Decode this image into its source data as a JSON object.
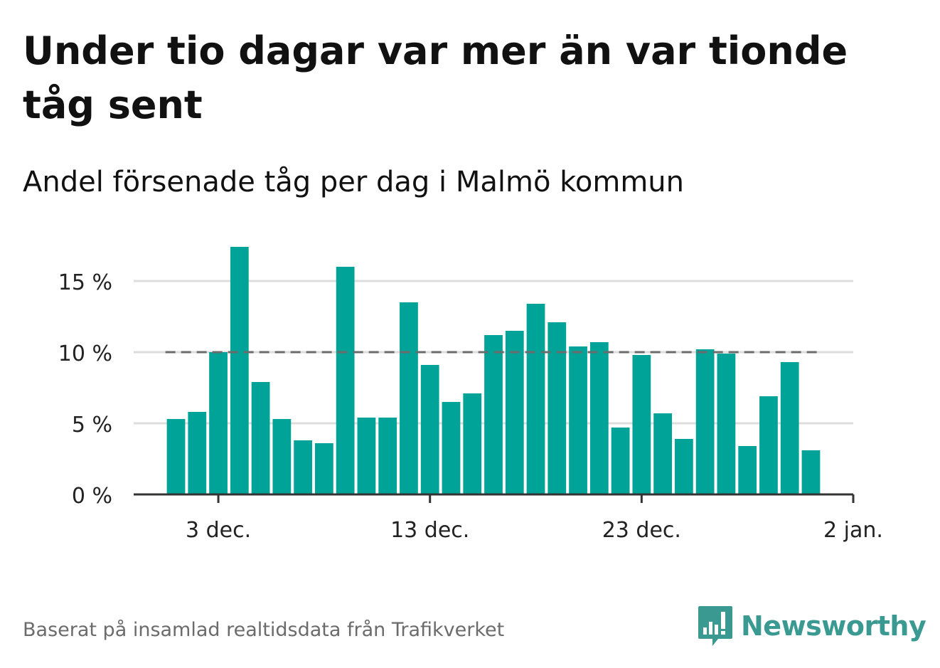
{
  "title": "Under tio dagar var mer än var tionde tåg sent",
  "subtitle": "Andel försenade tåg per dag i Malmö kommun",
  "source": "Baserat på insamlad realtidsdata från Trafikverket",
  "brand": {
    "name": "Newsworthy",
    "icon": "bar-chart-logo-icon",
    "color": "#3a9a92"
  },
  "chart_data": {
    "type": "bar",
    "x": [
      "2020-12-01",
      "2020-12-02",
      "2020-12-03",
      "2020-12-04",
      "2020-12-05",
      "2020-12-06",
      "2020-12-07",
      "2020-12-08",
      "2020-12-09",
      "2020-12-10",
      "2020-12-11",
      "2020-12-12",
      "2020-12-13",
      "2020-12-14",
      "2020-12-15",
      "2020-12-16",
      "2020-12-17",
      "2020-12-18",
      "2020-12-19",
      "2020-12-20",
      "2020-12-21",
      "2020-12-22",
      "2020-12-23",
      "2020-12-24",
      "2020-12-25",
      "2020-12-26",
      "2020-12-27",
      "2020-12-28",
      "2020-12-29",
      "2020-12-30",
      "2020-12-31"
    ],
    "values": [
      5.3,
      5.8,
      10.0,
      17.4,
      7.9,
      5.3,
      3.8,
      3.6,
      16.0,
      5.4,
      5.4,
      13.5,
      9.1,
      6.5,
      7.1,
      11.2,
      11.5,
      13.4,
      12.1,
      10.4,
      10.7,
      4.7,
      9.8,
      5.7,
      3.9,
      10.2,
      9.9,
      3.4,
      6.9,
      9.3,
      3.1
    ],
    "reference_line": {
      "value": 10,
      "style": "dashed",
      "color": "#6b6b6b"
    },
    "ylim": [
      0,
      18
    ],
    "yticks": [
      0,
      5,
      10,
      15
    ],
    "ytick_labels": [
      "0 %",
      "5 %",
      "10 %",
      "15 %"
    ],
    "xticks": [
      "2020-12-03",
      "2020-12-13",
      "2020-12-23",
      "2021-01-02"
    ],
    "xtick_labels": [
      "3 dec.",
      "13 dec.",
      "23 dec.",
      "2 jan."
    ],
    "xlim": [
      "2020-11-29",
      "2021-01-02"
    ],
    "grid": true,
    "bar_color": "#00a398",
    "grid_color": "#dddddd",
    "axis_color": "#333333"
  }
}
